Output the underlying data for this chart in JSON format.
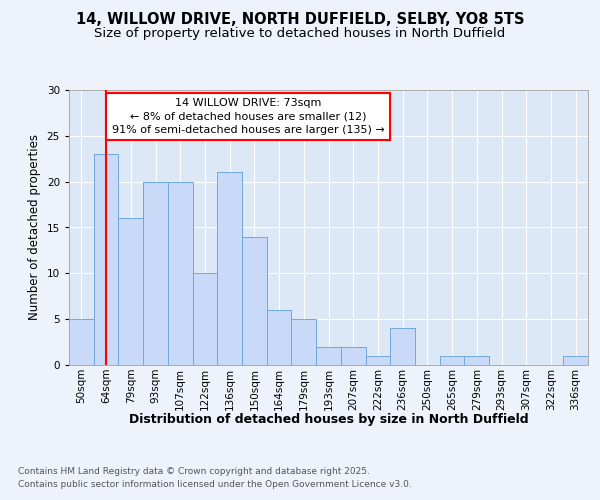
{
  "title_line1": "14, WILLOW DRIVE, NORTH DUFFIELD, SELBY, YO8 5TS",
  "title_line2": "Size of property relative to detached houses in North Duffield",
  "xlabel": "Distribution of detached houses by size in North Duffield",
  "ylabel": "Number of detached properties",
  "bins": [
    "50sqm",
    "64sqm",
    "79sqm",
    "93sqm",
    "107sqm",
    "122sqm",
    "136sqm",
    "150sqm",
    "164sqm",
    "179sqm",
    "193sqm",
    "207sqm",
    "222sqm",
    "236sqm",
    "250sqm",
    "265sqm",
    "279sqm",
    "293sqm",
    "307sqm",
    "322sqm",
    "336sqm"
  ],
  "values": [
    5,
    23,
    16,
    20,
    20,
    10,
    21,
    14,
    6,
    5,
    2,
    2,
    1,
    4,
    0,
    1,
    1,
    0,
    0,
    0,
    1
  ],
  "bar_color": "#c9daf8",
  "bar_edge_color": "#6fa8dc",
  "red_line_index": 1,
  "annotation_title": "14 WILLOW DRIVE: 73sqm",
  "annotation_line1": "← 8% of detached houses are smaller (12)",
  "annotation_line2": "91% of semi-detached houses are larger (135) →",
  "ylim": [
    0,
    30
  ],
  "yticks": [
    0,
    5,
    10,
    15,
    20,
    25,
    30
  ],
  "background_color": "#eef2fb",
  "plot_bg_color": "#dde8f7",
  "footer_line1": "Contains HM Land Registry data © Crown copyright and database right 2025.",
  "footer_line2": "Contains public sector information licensed under the Open Government Licence v3.0.",
  "title_fontsize": 10.5,
  "subtitle_fontsize": 9.5,
  "xlabel_fontsize": 9,
  "ylabel_fontsize": 8.5,
  "tick_fontsize": 7.5,
  "annotation_fontsize": 8,
  "footer_fontsize": 6.5
}
